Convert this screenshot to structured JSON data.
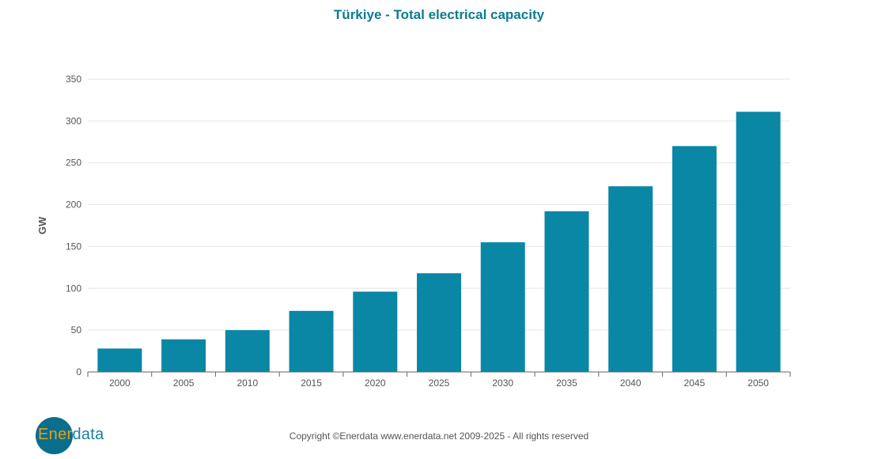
{
  "chart_data": {
    "type": "bar",
    "title": "Türkiye - Total electrical capacity",
    "xlabel": "",
    "ylabel": "GW",
    "categories": [
      "2000",
      "2005",
      "2010",
      "2015",
      "2020",
      "2025",
      "2030",
      "2035",
      "2040",
      "2045",
      "2050"
    ],
    "values": [
      28,
      39,
      50,
      73,
      96,
      118,
      155,
      192,
      222,
      270,
      311
    ],
    "ylim": [
      0,
      350
    ],
    "yticks": [
      0,
      50,
      100,
      150,
      200,
      250,
      300,
      350
    ],
    "grid": true,
    "bar_color": "#0a87a5"
  },
  "footer": {
    "copyright": "Copyright ©Enerdata www.enerdata.net 2009-2025 - All rights reserved"
  },
  "logo": {
    "part1": "Ener",
    "part2": "data"
  }
}
